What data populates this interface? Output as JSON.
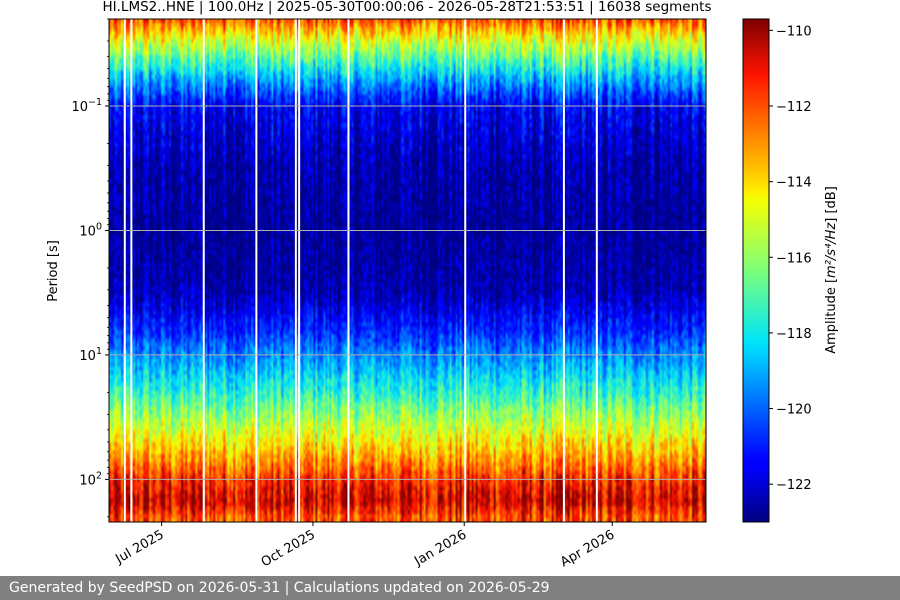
{
  "chart_data": {
    "type": "heatmap",
    "title": "HI.LMS2..HNE | 100.0Hz | 2025-05-30T00:00:06 - 2026-05-28T21:53:51 | 16038 segments",
    "xlabel": "",
    "ylabel": "Period [s]",
    "x_range": [
      "2025-05-30",
      "2026-05-28"
    ],
    "x_ticks": [
      {
        "date": "2025-07-01",
        "label": "Jul 2025"
      },
      {
        "date": "2025-10-01",
        "label": "Oct 2025"
      },
      {
        "date": "2026-01-01",
        "label": "Jan 2026"
      },
      {
        "date": "2026-04-01",
        "label": "Apr 2026"
      }
    ],
    "y_scale": "log",
    "y_inverted": true,
    "y_range": [
      0.02,
      220
    ],
    "y_ticks": [
      {
        "value": 0.1,
        "base": "10",
        "exp": "−1"
      },
      {
        "value": 1,
        "base": "10",
        "exp": "0"
      },
      {
        "value": 10,
        "base": "10",
        "exp": "1"
      },
      {
        "value": 100,
        "base": "10",
        "exp": "2"
      }
    ],
    "grid": true,
    "colormap": "jet",
    "colorbar": {
      "label_prefix": "Amplitude [",
      "label_units": "m²/s⁴/Hz",
      "label_suffix": "] [dB]",
      "range": [
        -123,
        -109.7
      ],
      "ticks": [
        "−110",
        "−112",
        "−114",
        "−116",
        "−118",
        "−120",
        "−122"
      ],
      "tick_values": [
        -110,
        -112,
        -114,
        -116,
        -118,
        -120,
        -122
      ]
    },
    "amplitude_profile_by_period": [
      {
        "period": 0.02,
        "db": -112
      },
      {
        "period": 0.03,
        "db": -115
      },
      {
        "period": 0.06,
        "db": -119
      },
      {
        "period": 0.1,
        "db": -121.5
      },
      {
        "period": 0.3,
        "db": -122.5
      },
      {
        "period": 1,
        "db": -122.8
      },
      {
        "period": 3,
        "db": -122.5
      },
      {
        "period": 6,
        "db": -121
      },
      {
        "period": 10,
        "db": -119.5
      },
      {
        "period": 20,
        "db": -117.5
      },
      {
        "period": 40,
        "db": -115
      },
      {
        "period": 70,
        "db": -113
      },
      {
        "period": 100,
        "db": -111.5
      },
      {
        "period": 150,
        "db": -110.5
      },
      {
        "period": 200,
        "db": -112
      }
    ],
    "data_gaps": [
      "2025-06-08",
      "2025-06-12",
      "2025-07-26",
      "2025-08-27",
      "2025-09-20",
      "2025-09-22",
      "2025-10-22",
      "2026-01-01",
      "2026-03-02",
      "2026-03-22"
    ]
  },
  "footer": {
    "text": "Generated by SeedPSD on 2026-05-31 | Calculations updated on 2026-05-29"
  }
}
